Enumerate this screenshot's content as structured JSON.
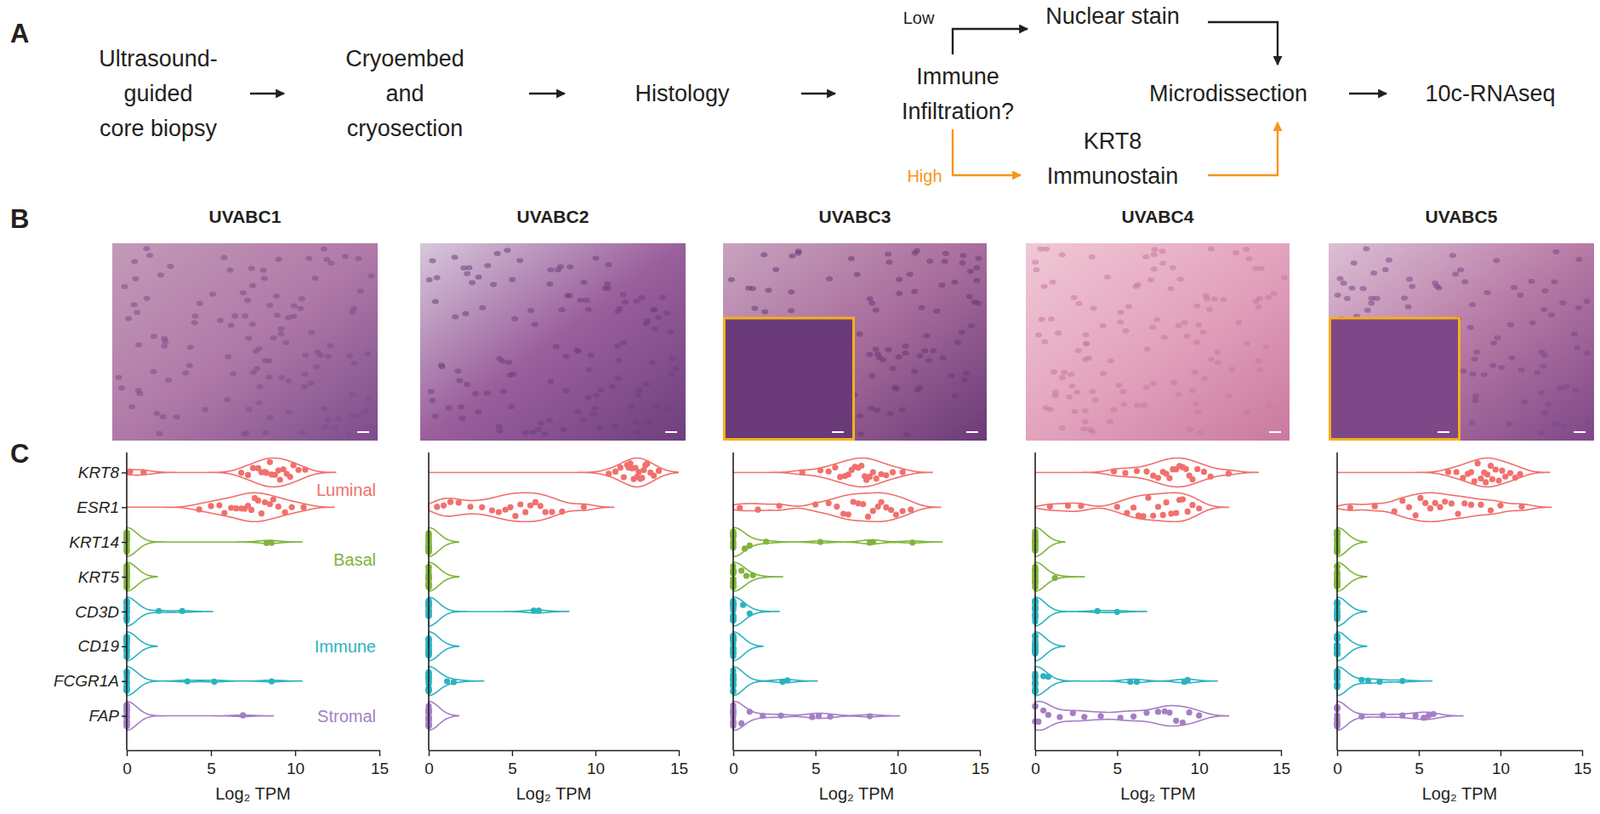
{
  "panel_labels": [
    "A",
    "B",
    "C"
  ],
  "diagram": {
    "nodes": [
      {
        "lines": [
          "Ultrasound-",
          "guided",
          "core biopsy"
        ]
      },
      {
        "lines": [
          "Cryoembed",
          "and",
          "cryosection"
        ]
      },
      {
        "lines": [
          "Histology"
        ]
      },
      {
        "lines": [
          "Immune",
          "Infiltration?"
        ]
      },
      {
        "lines": [
          "Nuclear stain"
        ]
      },
      {
        "lines": [
          "KRT8",
          "Immunostain"
        ]
      },
      {
        "lines": [
          "Microdissection"
        ]
      },
      {
        "lines": [
          "10c-RNAseq"
        ]
      }
    ],
    "edge_labels": [
      {
        "text": "Low",
        "color": "#231f20"
      },
      {
        "text": "High",
        "color": "#f7941d"
      }
    ]
  },
  "chart_data": [
    {
      "type": "violin",
      "title": "UVABC1",
      "x_label": "Log₂ TPM",
      "categories": [
        "KRT8",
        "ESR1",
        "KRT14",
        "KRT5",
        "CD3D",
        "CD19",
        "FCGR1A",
        "FAP"
      ],
      "colors": [
        "#f0706d",
        "#f0706d",
        "#80b43c",
        "#80b43c",
        "#2bb3c0",
        "#2bb3c0",
        "#2bb3c0",
        "#a47fc6"
      ],
      "annotations": [
        {
          "text": "Luminal",
          "color": "#f0706d",
          "rows": [
            "KRT8",
            "ESR1"
          ]
        },
        {
          "text": "Basal",
          "color": "#80b43c",
          "rows": [
            "KRT14",
            "KRT5"
          ]
        },
        {
          "text": "Immune",
          "color": "#2bb3c0",
          "rows": [
            "CD3D",
            "CD19",
            "FCGR1A"
          ]
        },
        {
          "text": "Stromal",
          "color": "#a47fc6",
          "rows": [
            "FAP"
          ]
        }
      ],
      "values": [
        [
          0.2,
          1.0,
          6.8,
          7.2,
          7.5,
          7.8,
          8.0,
          8.2,
          8.3,
          8.5,
          8.6,
          8.8,
          9.0,
          9.1,
          9.3,
          9.5,
          9.7,
          9.9,
          10.2,
          10.6
        ],
        [
          4.3,
          5.0,
          5.5,
          5.8,
          6.2,
          6.5,
          6.8,
          7.0,
          7.2,
          7.4,
          7.6,
          7.8,
          8.0,
          8.2,
          8.5,
          8.7,
          9.0,
          9.4,
          9.8,
          10.5
        ],
        [
          0,
          0,
          0,
          0,
          0,
          0,
          0,
          0,
          0,
          0,
          0,
          0,
          0,
          0,
          0,
          0,
          0,
          0,
          8.3,
          8.6
        ],
        [
          0,
          0,
          0,
          0,
          0,
          0,
          0,
          0,
          0,
          0,
          0,
          0,
          0,
          0,
          0,
          0,
          0,
          0,
          0,
          0
        ],
        [
          0,
          0,
          0,
          0,
          0,
          0,
          0,
          0,
          0,
          0,
          0,
          0,
          0,
          0,
          0,
          0,
          0,
          0,
          1.9,
          3.3
        ],
        [
          0,
          0,
          0,
          0,
          0,
          0,
          0,
          0,
          0,
          0,
          0,
          0,
          0,
          0,
          0,
          0,
          0,
          0,
          0,
          0
        ],
        [
          0,
          0,
          0,
          0,
          0,
          0,
          0,
          0,
          0,
          0,
          0,
          0,
          0,
          0,
          0,
          0,
          0,
          3.6,
          5.2,
          8.6
        ],
        [
          0,
          0,
          0,
          0,
          0,
          0,
          0,
          0,
          0,
          0,
          0,
          0,
          0,
          0,
          0,
          0,
          0,
          0,
          0,
          6.9
        ]
      ],
      "xlim": [
        0,
        15
      ],
      "xticks": [
        0,
        5,
        10,
        15
      ]
    },
    {
      "type": "violin",
      "title": "UVABC2",
      "x_label": "Log₂ TPM",
      "categories": [
        null,
        null,
        null,
        null,
        null,
        null,
        null,
        null
      ],
      "tick_labels": "x",
      "colors": [
        "#f0706d",
        "#f0706d",
        "#80b43c",
        "#80b43c",
        "#2bb3c0",
        "#2bb3c0",
        "#2bb3c0",
        "#a47fc6"
      ],
      "values": [
        [
          10.8,
          11.2,
          11.5,
          11.7,
          11.9,
          12.0,
          12.1,
          12.2,
          12.3,
          12.4,
          12.5,
          12.6,
          12.7,
          12.8,
          12.9,
          13.0,
          13.1,
          13.3,
          13.5,
          13.8
        ],
        [
          0.5,
          0.9,
          1.3,
          1.8,
          2.5,
          3.2,
          3.8,
          4.2,
          4.6,
          4.9,
          5.2,
          5.5,
          5.8,
          6.1,
          6.4,
          6.7,
          7.0,
          7.4,
          8.0,
          9.3
        ],
        [
          0,
          0,
          0,
          0,
          0,
          0,
          0,
          0,
          0,
          0,
          0,
          0,
          0,
          0,
          0,
          0,
          0,
          0,
          0,
          0
        ],
        [
          0,
          0,
          0,
          0,
          0,
          0,
          0,
          0,
          0,
          0,
          0,
          0,
          0,
          0,
          0,
          0,
          0,
          0,
          0,
          0
        ],
        [
          0,
          0,
          0,
          0,
          0,
          0,
          0,
          0,
          0,
          0,
          0,
          0,
          0,
          0,
          0,
          0,
          0,
          0,
          6.3,
          6.6
        ],
        [
          0,
          0,
          0,
          0,
          0,
          0,
          0,
          0,
          0,
          0,
          0,
          0,
          0,
          0,
          0,
          0,
          0,
          0,
          0,
          0
        ],
        [
          0,
          0,
          0,
          0,
          0,
          0,
          0,
          0,
          0,
          0,
          0,
          0,
          0,
          0,
          0,
          0,
          0,
          0,
          1.1,
          1.5
        ],
        [
          0,
          0,
          0,
          0,
          0,
          0,
          0,
          0,
          0,
          0,
          0,
          0,
          0,
          0,
          0,
          0,
          0,
          0,
          0,
          0
        ]
      ],
      "xlim": [
        0,
        15
      ],
      "xticks": [
        0,
        5,
        10,
        15
      ]
    },
    {
      "type": "violin",
      "title": "UVABC3",
      "x_label": "Log₂ TPM",
      "categories": [
        null,
        null,
        null,
        null,
        null,
        null,
        null,
        null
      ],
      "tick_labels": "x",
      "colors": [
        "#f0706d",
        "#f0706d",
        "#80b43c",
        "#80b43c",
        "#2bb3c0",
        "#2bb3c0",
        "#2bb3c0",
        "#a47fc6"
      ],
      "values": [
        [
          4.2,
          5.3,
          5.8,
          6.2,
          6.5,
          6.8,
          7.0,
          7.2,
          7.4,
          7.6,
          7.8,
          8.0,
          8.1,
          8.3,
          8.5,
          8.7,
          9.0,
          9.3,
          9.7,
          10.3
        ],
        [
          0.4,
          1.5,
          2.8,
          5.0,
          5.8,
          6.3,
          6.7,
          7.0,
          7.3,
          7.6,
          7.9,
          8.2,
          8.5,
          8.8,
          9.0,
          9.3,
          9.6,
          9.9,
          10.3,
          10.8
        ],
        [
          0,
          0,
          0,
          0,
          0,
          0,
          0,
          0,
          0,
          0,
          0,
          0,
          0,
          0.7,
          1.0,
          2.0,
          5.3,
          8.3,
          8.5,
          10.9
        ],
        [
          0,
          0,
          0,
          0,
          0,
          0,
          0,
          0,
          0,
          0,
          0,
          0,
          0,
          0,
          0,
          0,
          0,
          0.5,
          0.8,
          1.2
        ],
        [
          0,
          0,
          0,
          0,
          0,
          0,
          0,
          0,
          0,
          0,
          0,
          0,
          0,
          0,
          0,
          0,
          0,
          0,
          0.6,
          1.0
        ],
        [
          0,
          0,
          0,
          0,
          0,
          0,
          0,
          0,
          0,
          0,
          0,
          0,
          0,
          0,
          0,
          0,
          0,
          0,
          0,
          0
        ],
        [
          0,
          0,
          0,
          0,
          0,
          0,
          0,
          0,
          0,
          0,
          0,
          0,
          0,
          0,
          0,
          0,
          0,
          0,
          3.0,
          3.3
        ],
        [
          0,
          0,
          0,
          0,
          0,
          0,
          0,
          0,
          0,
          0,
          0,
          0,
          0.5,
          1.0,
          1.8,
          2.9,
          4.8,
          5.2,
          5.9,
          8.3
        ]
      ],
      "xlim": [
        0,
        15
      ],
      "xticks": [
        0,
        5,
        10,
        15
      ]
    },
    {
      "type": "violin",
      "title": "UVABC4",
      "x_label": "Log₂ TPM",
      "categories": [
        null,
        null,
        null,
        null,
        null,
        null,
        null,
        null
      ],
      "tick_labels": "x",
      "colors": [
        "#f0706d",
        "#f0706d",
        "#80b43c",
        "#80b43c",
        "#2bb3c0",
        "#2bb3c0",
        "#2bb3c0",
        "#a47fc6"
      ],
      "values": [
        [
          4.8,
          5.5,
          6.2,
          6.8,
          7.2,
          7.5,
          7.8,
          8.0,
          8.2,
          8.4,
          8.6,
          8.8,
          9.0,
          9.2,
          9.4,
          9.6,
          9.9,
          10.3,
          10.7,
          11.8
        ],
        [
          0.9,
          2.0,
          2.8,
          5.0,
          5.6,
          6.0,
          6.3,
          6.6,
          6.9,
          7.2,
          7.5,
          7.8,
          8.0,
          8.3,
          8.6,
          8.8,
          9.0,
          9.3,
          9.6,
          10.0
        ],
        [
          0,
          0,
          0,
          0,
          0,
          0,
          0,
          0,
          0,
          0,
          0,
          0,
          0,
          0,
          0,
          0,
          0,
          0,
          0,
          0
        ],
        [
          0,
          0,
          0,
          0,
          0,
          0,
          0,
          0,
          0,
          0,
          0,
          0,
          0,
          0,
          0,
          0,
          0,
          0,
          0,
          1.2
        ],
        [
          0,
          0,
          0,
          0,
          0,
          0,
          0,
          0,
          0,
          0,
          0,
          0,
          0,
          0,
          0,
          0,
          0,
          0,
          3.8,
          5.0
        ],
        [
          0,
          0,
          0,
          0,
          0,
          0,
          0,
          0,
          0,
          0,
          0,
          0,
          0,
          0,
          0,
          0,
          0,
          0,
          0,
          0
        ],
        [
          0,
          0,
          0,
          0,
          0,
          0,
          0,
          0,
          0,
          0,
          0,
          0,
          0,
          0,
          0.5,
          0.8,
          5.8,
          6.2,
          9.1,
          9.3
        ],
        [
          0,
          0,
          0,
          0.2,
          0.5,
          0.8,
          1.5,
          2.3,
          3.0,
          4.0,
          5.2,
          6.0,
          6.8,
          7.5,
          7.9,
          8.2,
          8.6,
          9.0,
          9.4,
          10.0
        ]
      ],
      "xlim": [
        0,
        15
      ],
      "xticks": [
        0,
        5,
        10,
        15
      ]
    },
    {
      "type": "violin",
      "title": "UVABC5",
      "x_label": "Log₂ TPM",
      "categories": [
        null,
        null,
        null,
        null,
        null,
        null,
        null,
        null
      ],
      "tick_labels": "x",
      "colors": [
        "#f0706d",
        "#f0706d",
        "#80b43c",
        "#80b43c",
        "#2bb3c0",
        "#2bb3c0",
        "#2bb3c0",
        "#a47fc6"
      ],
      "values": [
        [
          6.8,
          7.3,
          7.7,
          8.0,
          8.2,
          8.4,
          8.6,
          8.8,
          9.0,
          9.1,
          9.2,
          9.4,
          9.5,
          9.7,
          9.9,
          10.1,
          10.3,
          10.6,
          10.9,
          11.2
        ],
        [
          0.8,
          2.3,
          3.5,
          4.0,
          4.4,
          4.8,
          5.1,
          5.4,
          5.7,
          6.0,
          6.3,
          6.6,
          7.0,
          7.4,
          7.8,
          8.2,
          8.8,
          9.4,
          10.0,
          11.3
        ],
        [
          0,
          0,
          0,
          0,
          0,
          0,
          0,
          0,
          0,
          0,
          0,
          0,
          0,
          0,
          0,
          0,
          0,
          0,
          0,
          0
        ],
        [
          0,
          0,
          0,
          0,
          0,
          0,
          0,
          0,
          0,
          0,
          0,
          0,
          0,
          0,
          0,
          0,
          0,
          0,
          0,
          0
        ],
        [
          0,
          0,
          0,
          0,
          0,
          0,
          0,
          0,
          0,
          0,
          0,
          0,
          0,
          0,
          0,
          0,
          0,
          0,
          0,
          0
        ],
        [
          0,
          0,
          0,
          0,
          0,
          0,
          0,
          0,
          0,
          0,
          0,
          0,
          0,
          0,
          0,
          0,
          0,
          0,
          0,
          0
        ],
        [
          0,
          0,
          0,
          0,
          0,
          0,
          0,
          0,
          0,
          0,
          0,
          0,
          0,
          0,
          0,
          0,
          1.5,
          1.9,
          2.6,
          4.0
        ],
        [
          0,
          0,
          0,
          0,
          0,
          0,
          0,
          0,
          0,
          0,
          0,
          0,
          0,
          1.5,
          2.8,
          4.0,
          4.8,
          5.3,
          5.6,
          5.9
        ]
      ],
      "xlim": [
        0,
        15
      ],
      "xticks": [
        0,
        5,
        10,
        15
      ]
    }
  ]
}
